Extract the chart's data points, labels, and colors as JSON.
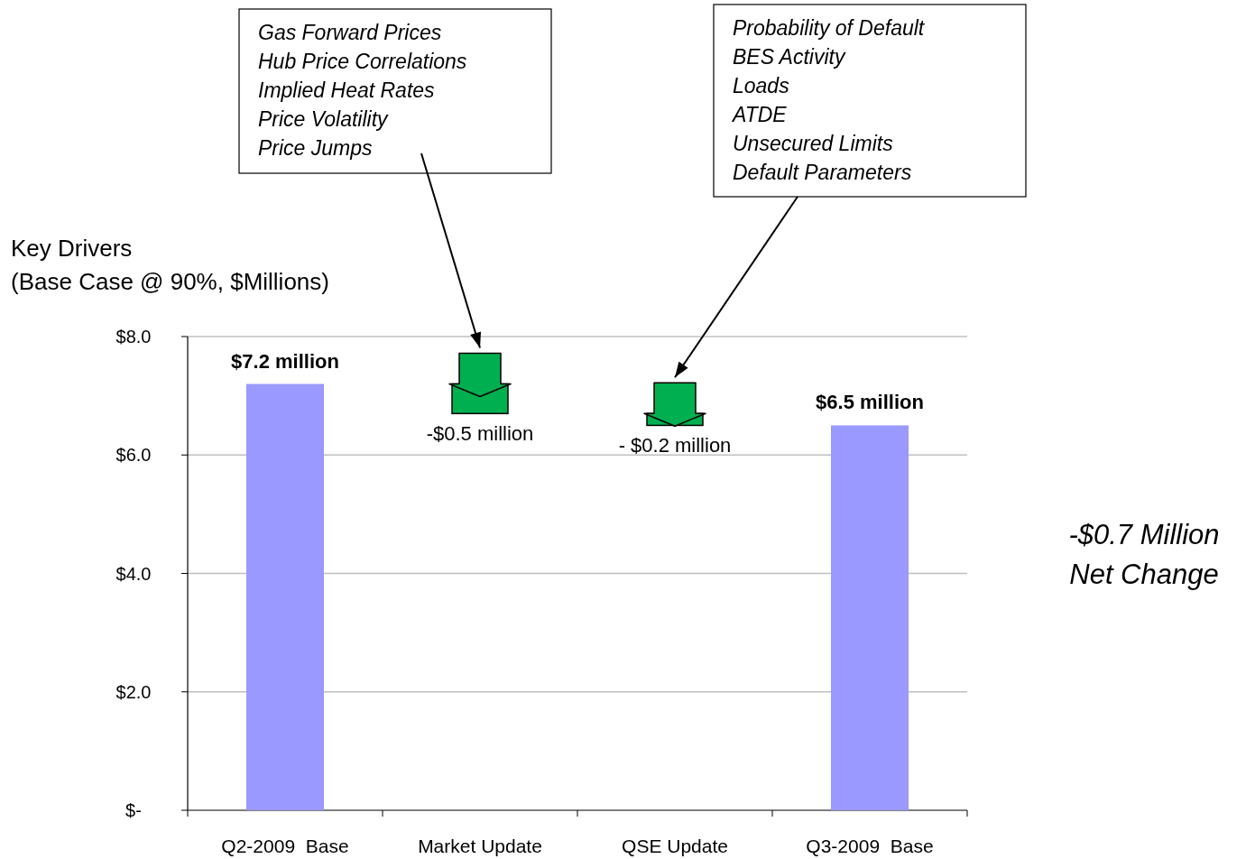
{
  "chart_data": {
    "type": "bar",
    "ylabel": "Key Drivers\n(Base Case @ 90%, $Millions)",
    "categories": [
      "Q2-2009  Base",
      "Market Update",
      "QSE Update",
      "Q3-2009  Base"
    ],
    "values": [
      7.2,
      -0.5,
      -0.2,
      6.5
    ],
    "base": [
      null,
      7.2,
      6.7,
      null
    ],
    "colors": [
      "#9999ff",
      "#00b050",
      "#00b050",
      "#9999ff"
    ],
    "value_labels": [
      "$7.2 million",
      "-$0.5 million",
      "- $0.2 million",
      "$6.5 million"
    ],
    "ylim": [
      0,
      8
    ],
    "yticks": [
      {
        "value": 0,
        "label": "$-"
      },
      {
        "value": 2,
        "label": "$2.0"
      },
      {
        "value": 4,
        "label": "$4.0"
      },
      {
        "value": 6,
        "label": "$6.0"
      },
      {
        "value": 8,
        "label": "$8.0"
      }
    ],
    "grid": "y",
    "annotations": [
      "Gas Forward Prices\nHub Price Correlations\nImplied Heat Rates\nPrice Volatility\nPrice Jumps",
      "Probability of Default\nBES Activity\nLoads\nATDE\nUnsecured Limits\nDefault Parameters",
      "-$0.7 Million\nNet Change"
    ]
  }
}
